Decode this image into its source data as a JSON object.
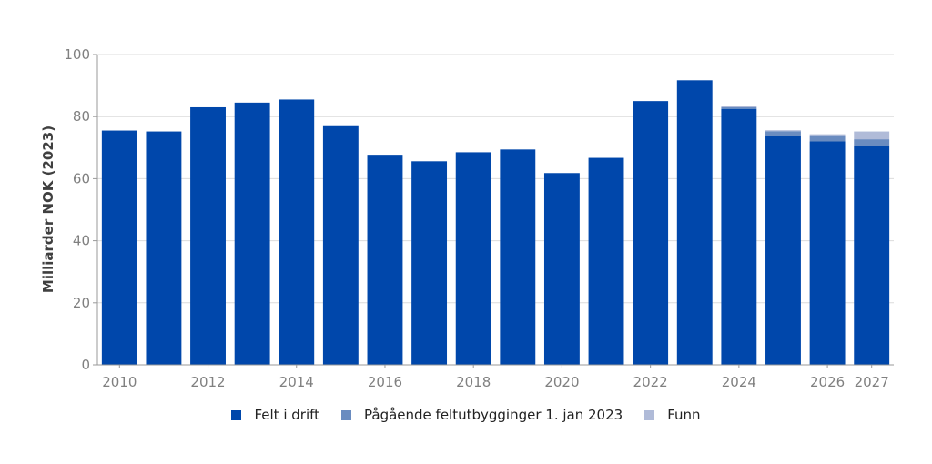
{
  "chart_data": {
    "type": "bar",
    "stacked": true,
    "title": "",
    "xlabel": "",
    "ylabel": "Milliarder NOK (2023)",
    "ylim": [
      0,
      100
    ],
    "yticks": [
      0,
      20,
      40,
      60,
      80,
      100
    ],
    "grid": true,
    "legend_position": "bottom",
    "categories": [
      "2010",
      "2011",
      "2012",
      "2013",
      "2014",
      "2015",
      "2016",
      "2017",
      "2018",
      "2019",
      "2020",
      "2021",
      "2022",
      "2023",
      "2024",
      "2025",
      "2026",
      "2027"
    ],
    "x_tick_labels": [
      "2010",
      "",
      "2012",
      "",
      "2014",
      "",
      "2016",
      "",
      "2018",
      "",
      "2020",
      "",
      "2022",
      "",
      "2024",
      "",
      "2026",
      "2027"
    ],
    "series": [
      {
        "name": "Felt i drift",
        "color": "#0047ab",
        "values": [
          75.5,
          75.2,
          83.0,
          84.5,
          85.5,
          77.2,
          67.7,
          65.6,
          68.5,
          69.4,
          61.8,
          66.7,
          85.0,
          91.7,
          82.5,
          73.8,
          72.0,
          70.5
        ]
      },
      {
        "name": "Pågående feltutbygginger 1. jan 2023",
        "color": "#6a8cc0",
        "values": [
          0,
          0,
          0,
          0,
          0,
          0,
          0,
          0,
          0,
          0,
          0,
          0,
          0,
          0,
          0.5,
          1.5,
          2.0,
          2.2
        ]
      },
      {
        "name": "Funn",
        "color": "#b0bbd8",
        "values": [
          0,
          0,
          0,
          0,
          0,
          0,
          0,
          0,
          0,
          0,
          0,
          0,
          0,
          0,
          0.3,
          0.3,
          0.3,
          2.5
        ]
      }
    ]
  }
}
